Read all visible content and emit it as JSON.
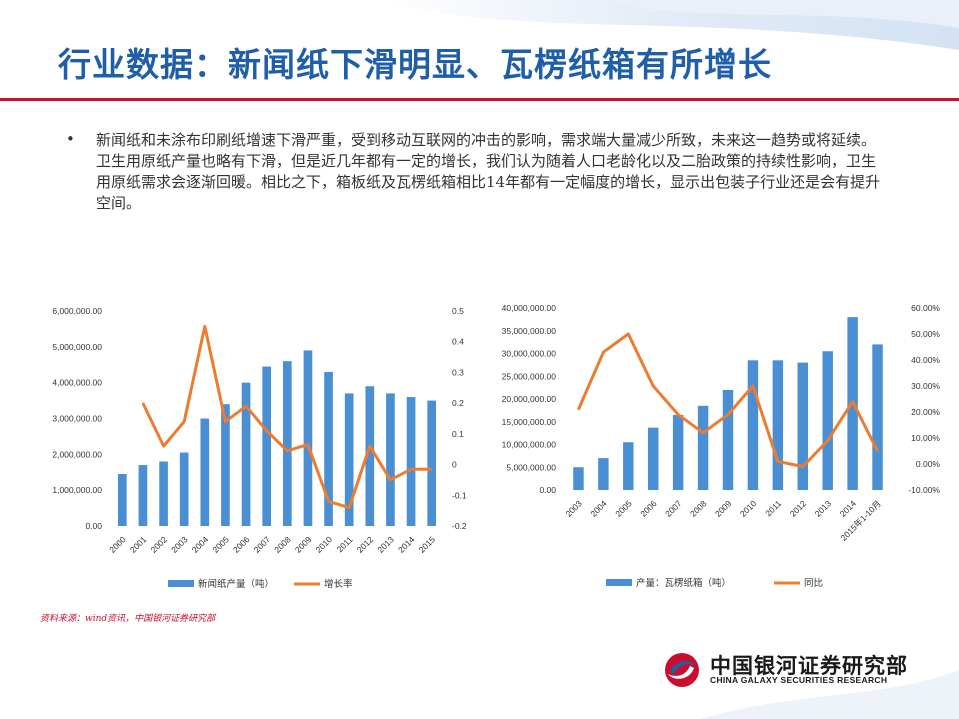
{
  "title": "行业数据：新闻纸下滑明显、瓦楞纸箱有所增长",
  "bullet": "新闻纸和未涂布印刷纸增速下滑严重，受到移动互联网的冲击的影响，需求端大量减少所致，未来这一趋势或将延续。卫生用原纸产量也略有下滑，但是近几年都有一定的增长，我们认为随着人口老龄化以及二胎政策的持续性影响，卫生用原纸需求会逐渐回暖。相比之下，箱板纸及瓦楞纸箱相比14年都有一定幅度的增长，显示出包装子行业还是会有提升空间。",
  "bullet_symbol": "•",
  "source": "资料来源：wind资讯，中国银河证券研究部",
  "logo": {
    "cn": "中国银河证券研究部",
    "en": "CHINA GALAXY SECURITIES RESEARCH"
  },
  "colors": {
    "title": "#1f5ea8",
    "rule": "#c8102e",
    "bar": "#4a8fd4",
    "line": "#ec7c31"
  },
  "chart_data": [
    {
      "type": "bar",
      "categories": [
        "2000",
        "2001",
        "2002",
        "2003",
        "2004",
        "2005",
        "2006",
        "2007",
        "2008",
        "2009",
        "2010",
        "2011",
        "2012",
        "2013",
        "2014",
        "2015"
      ],
      "series": [
        {
          "name": "新闻纸产量（吨）",
          "type": "bar",
          "axis": "left",
          "values": [
            1450000,
            1700000,
            1800000,
            2050000,
            3000000,
            3400000,
            4000000,
            4450000,
            4600000,
            4900000,
            4300000,
            3700000,
            3900000,
            3700000,
            3600000,
            3500000
          ]
        },
        {
          "name": "增长率",
          "type": "line",
          "axis": "right",
          "values": [
            null,
            0.2,
            0.06,
            0.14,
            0.45,
            0.14,
            0.19,
            0.11,
            0.045,
            0.065,
            -0.12,
            -0.14,
            0.06,
            -0.05,
            -0.015,
            -0.015
          ]
        }
      ],
      "y_left": {
        "min": 0,
        "max": 6000000,
        "ticks": [
          "0.00",
          "1,000,000.00",
          "2,000,000.00",
          "3,000,000.00",
          "4,000,000.00",
          "5,000,000.00",
          "6,000,000.00"
        ]
      },
      "y_right": {
        "min": -0.2,
        "max": 0.5,
        "ticks": [
          "-0.2",
          "-0.1",
          "0",
          "0.1",
          "0.2",
          "0.3",
          "0.4",
          "0.5"
        ]
      },
      "legend_position": "bottom"
    },
    {
      "type": "bar",
      "categories": [
        "2003",
        "2004",
        "2005",
        "2006",
        "2007",
        "2008",
        "2009",
        "2010",
        "2011",
        "2012",
        "2013",
        "2014",
        "2015年1-10月"
      ],
      "series": [
        {
          "name": "产量：瓦楞纸箱（吨）",
          "type": "bar",
          "axis": "left",
          "values": [
            5000000,
            7000000,
            10500000,
            13700000,
            16500000,
            18500000,
            22000000,
            28500000,
            28500000,
            28000000,
            30500000,
            38000000,
            32000000
          ]
        },
        {
          "name": "同比",
          "type": "line",
          "axis": "right",
          "values": [
            0.21,
            0.43,
            0.5,
            0.3,
            0.19,
            0.12,
            0.19,
            0.3,
            0.01,
            -0.01,
            0.09,
            0.24,
            0.05
          ]
        }
      ],
      "y_left": {
        "min": 0,
        "max": 40000000,
        "ticks": [
          "0.00",
          "5,000,000.00",
          "10,000,000.00",
          "15,000,000.00",
          "20,000,000.00",
          "25,000,000.00",
          "30,000,000.00",
          "35,000,000.00",
          "40,000,000.00"
        ]
      },
      "y_right": {
        "min": -0.1,
        "max": 0.6,
        "ticks": [
          "-10.00%",
          "0.00%",
          "10.00%",
          "20.00%",
          "30.00%",
          "40.00%",
          "50.00%",
          "60.00%"
        ]
      },
      "legend_position": "bottom"
    }
  ]
}
